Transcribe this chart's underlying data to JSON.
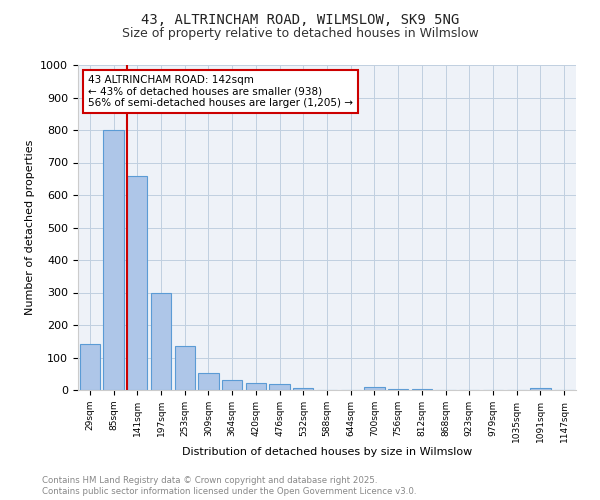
{
  "title1": "43, ALTRINCHAM ROAD, WILMSLOW, SK9 5NG",
  "title2": "Size of property relative to detached houses in Wilmslow",
  "xlabel": "Distribution of detached houses by size in Wilmslow",
  "ylabel": "Number of detached properties",
  "bin_labels": [
    "29sqm",
    "85sqm",
    "141sqm",
    "197sqm",
    "253sqm",
    "309sqm",
    "364sqm",
    "420sqm",
    "476sqm",
    "532sqm",
    "588sqm",
    "644sqm",
    "700sqm",
    "756sqm",
    "812sqm",
    "868sqm",
    "923sqm",
    "979sqm",
    "1035sqm",
    "1091sqm",
    "1147sqm"
  ],
  "bar_values": [
    143,
    800,
    660,
    300,
    135,
    52,
    30,
    22,
    20,
    5,
    0,
    0,
    8,
    3,
    2,
    0,
    0,
    0,
    0,
    5,
    0
  ],
  "bar_color": "#aec6e8",
  "bar_edge_color": "#5b9bd5",
  "vline_x_index": 2,
  "vline_color": "#cc0000",
  "annotation_text": "43 ALTRINCHAM ROAD: 142sqm\n← 43% of detached houses are smaller (938)\n56% of semi-detached houses are larger (1,205) →",
  "annotation_box_color": "#ffffff",
  "annotation_box_edge": "#cc0000",
  "ylim": [
    0,
    1000
  ],
  "yticks": [
    0,
    100,
    200,
    300,
    400,
    500,
    600,
    700,
    800,
    900,
    1000
  ],
  "bg_color": "#eef2f8",
  "footer1": "Contains HM Land Registry data © Crown copyright and database right 2025.",
  "footer2": "Contains public sector information licensed under the Open Government Licence v3.0."
}
